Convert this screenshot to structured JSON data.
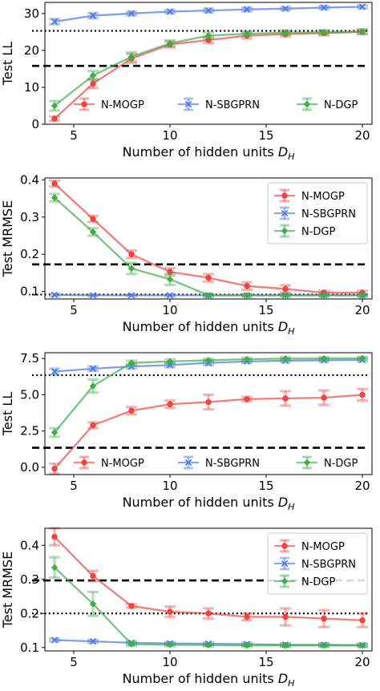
{
  "colors": {
    "n_mogp": "#ef4444",
    "n_sbgprn": "#4c78e0",
    "n_dgp": "#3fae49"
  },
  "chart_data": [
    {
      "type": "line",
      "xlabel": "Number of hidden units",
      "xlabel_math": "D",
      "xlabel_sub": "H",
      "ylabel": "Test LL",
      "xlim": [
        3.5,
        20.5
      ],
      "ylim": [
        0,
        33
      ],
      "xticks": [
        5,
        10,
        15,
        20
      ],
      "yticks": [
        0,
        10,
        20,
        30
      ],
      "ytick_labels": [
        "0",
        "10",
        "20",
        "30"
      ],
      "legend": "bottom-row",
      "x": [
        4,
        6,
        8,
        10,
        12,
        14,
        16,
        18,
        20
      ],
      "series": [
        {
          "name": "N-MOGP",
          "color_key": "n_mogp",
          "marker": "circle",
          "values": [
            1.5,
            11.0,
            17.8,
            21.6,
            22.8,
            24.0,
            24.4,
            24.7,
            25.0
          ],
          "errors": [
            0.6,
            1.2,
            1.2,
            0.8,
            0.8,
            0.8,
            0.6,
            0.6,
            0.6
          ]
        },
        {
          "name": "N-SBGPRN",
          "color_key": "n_sbgprn",
          "marker": "cross",
          "values": [
            27.8,
            29.4,
            30.0,
            30.5,
            30.8,
            31.1,
            31.3,
            31.6,
            31.8
          ],
          "errors": [
            0.7,
            0.7,
            0.5,
            0.5,
            0.5,
            0.5,
            0.4,
            0.4,
            0.4
          ]
        },
        {
          "name": "N-DGP",
          "color_key": "n_dgp",
          "marker": "diamond",
          "values": [
            5.0,
            13.2,
            18.3,
            21.9,
            24.0,
            24.5,
            24.8,
            24.9,
            25.1
          ],
          "errors": [
            1.3,
            1.2,
            1.2,
            0.8,
            0.8,
            0.6,
            0.6,
            0.6,
            0.6
          ]
        }
      ],
      "reference_lines": [
        {
          "style": "dotted",
          "y": 25.3
        },
        {
          "style": "dashed",
          "y": 15.8
        }
      ]
    },
    {
      "type": "line",
      "xlabel": "Number of hidden units",
      "xlabel_math": "D",
      "xlabel_sub": "H",
      "ylabel": "Test MRMSE",
      "xlim": [
        3.5,
        20.5
      ],
      "ylim": [
        0.08,
        0.405
      ],
      "xticks": [
        5,
        10,
        15,
        20
      ],
      "yticks": [
        0.1,
        0.2,
        0.3,
        0.4
      ],
      "ytick_labels": [
        "0.1",
        "0.2",
        "0.3",
        "0.4"
      ],
      "legend": "top-right",
      "x": [
        4,
        6,
        8,
        10,
        12,
        14,
        16,
        18,
        20
      ],
      "series": [
        {
          "name": "N-MOGP",
          "color_key": "n_mogp",
          "marker": "circle",
          "values": [
            0.39,
            0.295,
            0.2,
            0.153,
            0.137,
            0.115,
            0.107,
            0.097,
            0.097
          ],
          "errors": [
            0.008,
            0.008,
            0.01,
            0.01,
            0.01,
            0.01,
            0.01,
            0.005,
            0.005
          ]
        },
        {
          "name": "N-SBGPRN",
          "color_key": "n_sbgprn",
          "marker": "cross",
          "values": [
            0.091,
            0.09,
            0.09,
            0.09,
            0.09,
            0.09,
            0.09,
            0.09,
            0.09
          ],
          "errors": [
            0.003,
            0.002,
            0.002,
            0.002,
            0.002,
            0.002,
            0.002,
            0.002,
            0.002
          ]
        },
        {
          "name": "N-DGP",
          "color_key": "n_dgp",
          "marker": "diamond",
          "values": [
            0.352,
            0.26,
            0.162,
            0.133,
            0.09,
            0.09,
            0.09,
            0.09,
            0.09
          ],
          "errors": [
            0.01,
            0.01,
            0.015,
            0.015,
            0.004,
            0.003,
            0.003,
            0.003,
            0.003
          ]
        }
      ],
      "reference_lines": [
        {
          "style": "dashed",
          "y": 0.173
        },
        {
          "style": "dotted",
          "y": 0.092
        }
      ]
    },
    {
      "type": "line",
      "xlabel": "Number of hidden units",
      "xlabel_math": "D",
      "xlabel_sub": "H",
      "ylabel": "Test LL",
      "xlim": [
        3.5,
        20.5
      ],
      "ylim": [
        -0.5,
        7.9
      ],
      "xticks": [
        5,
        10,
        15,
        20
      ],
      "yticks": [
        0,
        2.5,
        5,
        7.5
      ],
      "ytick_labels": [
        "0.0",
        "2.5",
        "5.0",
        "7.5"
      ],
      "legend": "bottom-row",
      "x": [
        4,
        6,
        8,
        10,
        12,
        14,
        16,
        18,
        20
      ],
      "series": [
        {
          "name": "N-MOGP",
          "color_key": "n_mogp",
          "marker": "circle",
          "values": [
            -0.1,
            2.9,
            3.9,
            4.35,
            4.5,
            4.7,
            4.75,
            4.8,
            5.0
          ],
          "errors": [
            0.35,
            0.2,
            0.25,
            0.25,
            0.5,
            0.15,
            0.5,
            0.5,
            0.4
          ]
        },
        {
          "name": "N-SBGPRN",
          "color_key": "n_sbgprn",
          "marker": "cross",
          "values": [
            6.6,
            6.8,
            6.95,
            7.05,
            7.2,
            7.3,
            7.35,
            7.38,
            7.4
          ],
          "errors": [
            0.2,
            0.15,
            0.15,
            0.15,
            0.15,
            0.1,
            0.1,
            0.1,
            0.1
          ]
        },
        {
          "name": "N-DGP",
          "color_key": "n_dgp",
          "marker": "diamond",
          "values": [
            2.4,
            5.6,
            7.2,
            7.3,
            7.38,
            7.45,
            7.5,
            7.5,
            7.52
          ],
          "errors": [
            0.3,
            0.45,
            0.15,
            0.15,
            0.1,
            0.1,
            0.1,
            0.1,
            0.1
          ]
        }
      ],
      "reference_lines": [
        {
          "style": "dotted",
          "y": 6.35
        },
        {
          "style": "dashed",
          "y": 1.35
        }
      ]
    },
    {
      "type": "line",
      "xlabel": "Number of hidden units",
      "xlabel_math": "D",
      "xlabel_sub": "H",
      "ylabel": "Test MRMSE",
      "xlim": [
        3.5,
        20.5
      ],
      "ylim": [
        0.09,
        0.45
      ],
      "xticks": [
        5,
        10,
        15,
        20
      ],
      "yticks": [
        0.1,
        0.2,
        0.3,
        0.4
      ],
      "ytick_labels": [
        "0.1",
        "0.2",
        "0.3",
        "0.4"
      ],
      "legend": "top-right",
      "x": [
        4,
        6,
        8,
        10,
        12,
        14,
        16,
        18,
        20
      ],
      "series": [
        {
          "name": "N-MOGP",
          "color_key": "n_mogp",
          "marker": "circle",
          "values": [
            0.425,
            0.31,
            0.222,
            0.205,
            0.2,
            0.19,
            0.19,
            0.185,
            0.18
          ],
          "errors": [
            0.025,
            0.015,
            0.005,
            0.015,
            0.015,
            0.01,
            0.025,
            0.025,
            0.02
          ]
        },
        {
          "name": "N-SBGPRN",
          "color_key": "n_sbgprn",
          "marker": "cross",
          "values": [
            0.122,
            0.118,
            0.114,
            0.112,
            0.111,
            0.11,
            0.108,
            0.108,
            0.107
          ],
          "errors": [
            0.004,
            0.004,
            0.004,
            0.004,
            0.004,
            0.004,
            0.004,
            0.004,
            0.004
          ]
        },
        {
          "name": "N-DGP",
          "color_key": "n_dgp",
          "marker": "diamond",
          "values": [
            0.335,
            0.228,
            0.11,
            0.108,
            0.107,
            0.106,
            0.106,
            0.106,
            0.106
          ],
          "errors": [
            0.03,
            0.035,
            0.005,
            0.004,
            0.004,
            0.004,
            0.004,
            0.004,
            0.004
          ]
        }
      ],
      "reference_lines": [
        {
          "style": "dashed",
          "y": 0.297
        },
        {
          "style": "dotted",
          "y": 0.2
        }
      ]
    }
  ]
}
